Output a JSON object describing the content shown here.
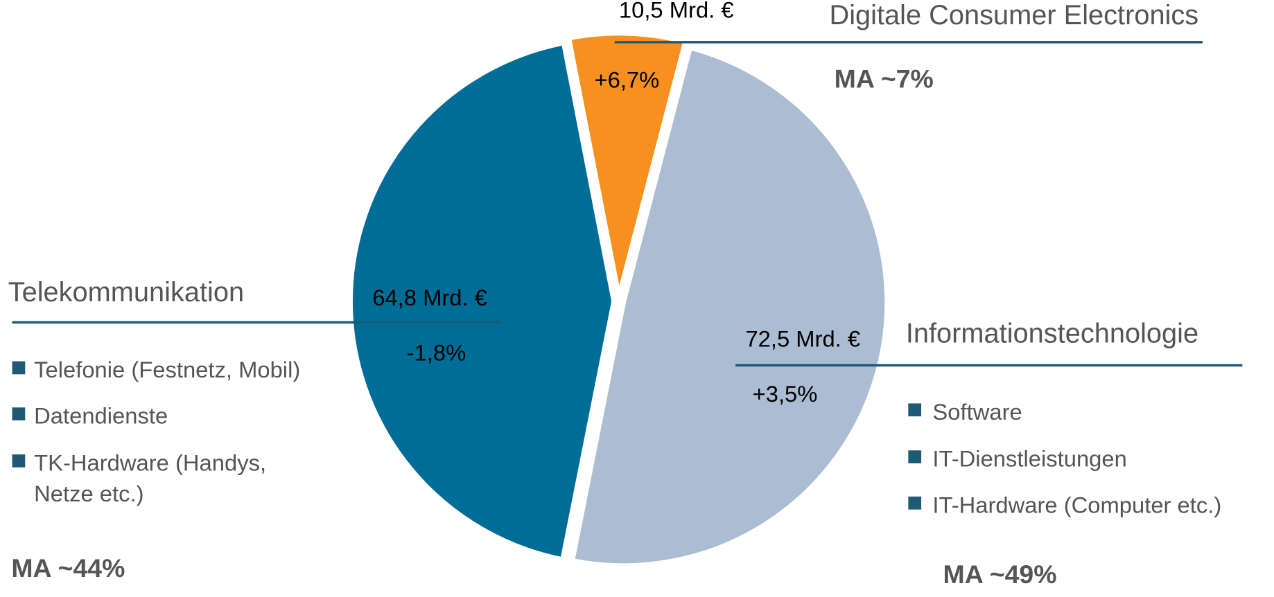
{
  "chart_data": {
    "type": "pie",
    "categories": [
      "Telekommunikation",
      "Digitale Consumer Electronics",
      "Informationstechnologie"
    ],
    "values": [
      64.8,
      10.5,
      72.5
    ],
    "value_labels": [
      "64,8 Mrd. €",
      "10,5 Mrd. €",
      "72,5 Mrd. €"
    ],
    "colors": [
      "#006d96",
      "#f7901e",
      "#abbdd2"
    ],
    "growth_labels": [
      "-1,8%",
      "+6,7%",
      "+3,5%"
    ],
    "market_share_labels": [
      "MA ~44%",
      "MA ~7%",
      "MA ~49%"
    ],
    "sub_items": [
      [
        [
          "Telefonie (Festnetz, Mobil)"
        ],
        [
          "Datendienste"
        ],
        [
          "TK-Hardware (Handys,",
          "Netze etc.)"
        ]
      ],
      [],
      [
        [
          "Software"
        ],
        [
          "IT-Dienstleistungen"
        ],
        [
          "IT-Hardware (Computer etc.)"
        ]
      ]
    ]
  }
}
